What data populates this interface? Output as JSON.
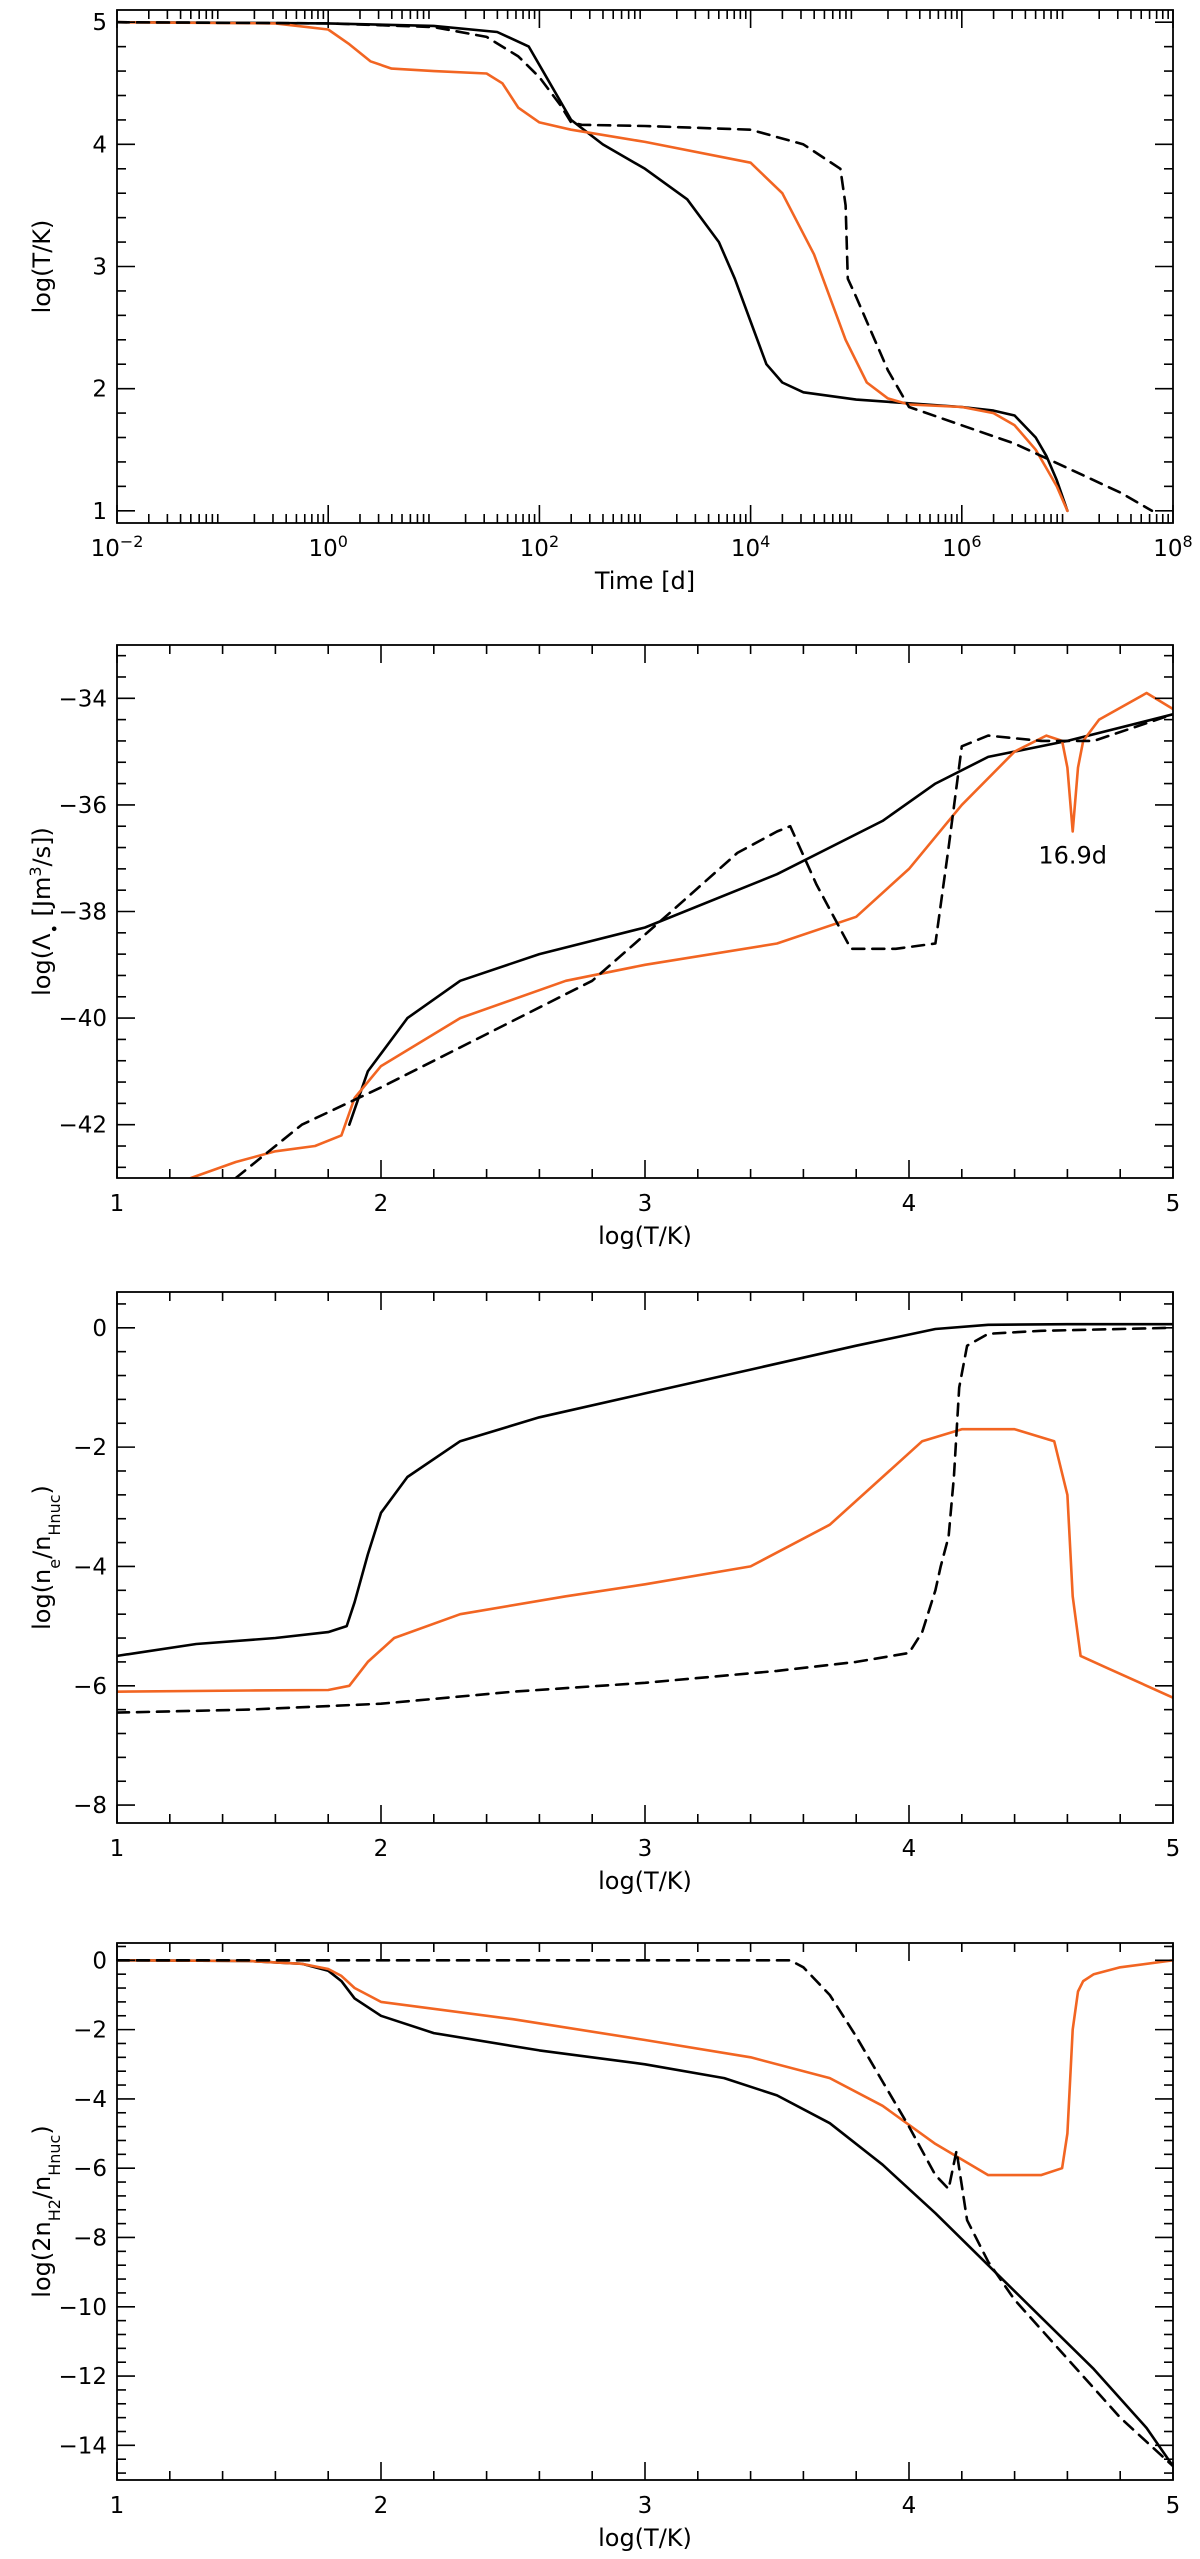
{
  "colors": {
    "black": "#000000",
    "orange": "#f26522"
  },
  "chart_data": [
    {
      "type": "line",
      "xscale": "log",
      "xlabel": "Time [d]",
      "ylabel": "log(T/K)",
      "xlim": [
        -2,
        8
      ],
      "ylim": [
        0.9,
        5.1
      ],
      "xticks": [
        {
          "v": -2,
          "base": "10",
          "exp": "−2"
        },
        {
          "v": 0,
          "base": "10",
          "exp": "0"
        },
        {
          "v": 2,
          "base": "10",
          "exp": "2"
        },
        {
          "v": 4,
          "base": "10",
          "exp": "4"
        },
        {
          "v": 6,
          "base": "10",
          "exp": "6"
        },
        {
          "v": 8,
          "base": "10",
          "exp": "8"
        }
      ],
      "yticks": [
        {
          "v": 1,
          "label": "1"
        },
        {
          "v": 2,
          "label": "2"
        },
        {
          "v": 3,
          "label": "3"
        },
        {
          "v": 4,
          "label": "4"
        },
        {
          "v": 5,
          "label": "5"
        }
      ],
      "series": [
        {
          "name": "solid-black",
          "color": "#000000",
          "dash": "",
          "x": [
            -2,
            0,
            1,
            1.6,
            1.9,
            2.1,
            2.3,
            2.6,
            3.0,
            3.4,
            3.7,
            3.85,
            4.0,
            4.15,
            4.3,
            4.5,
            5.0,
            5.5,
            6.0,
            6.3,
            6.5,
            6.7,
            6.8,
            6.9,
            7.0
          ],
          "y": [
            5.0,
            4.99,
            4.97,
            4.92,
            4.8,
            4.5,
            4.2,
            4.0,
            3.8,
            3.55,
            3.2,
            2.9,
            2.55,
            2.2,
            2.05,
            1.97,
            1.91,
            1.88,
            1.85,
            1.82,
            1.78,
            1.6,
            1.45,
            1.25,
            1.0
          ]
        },
        {
          "name": "orange",
          "color": "#f26522",
          "dash": "",
          "x": [
            -2,
            -0.5,
            0,
            0.2,
            0.4,
            0.6,
            1.0,
            1.5,
            1.65,
            1.8,
            2.0,
            2.3,
            3.0,
            4.0,
            4.3,
            4.6,
            4.9,
            5.1,
            5.3,
            5.5,
            6.0,
            6.3,
            6.5,
            6.7,
            6.8,
            6.9,
            7.0
          ],
          "y": [
            5.0,
            4.99,
            4.94,
            4.82,
            4.68,
            4.62,
            4.6,
            4.58,
            4.5,
            4.3,
            4.18,
            4.12,
            4.02,
            3.85,
            3.6,
            3.1,
            2.4,
            2.05,
            1.92,
            1.87,
            1.85,
            1.8,
            1.7,
            1.5,
            1.35,
            1.2,
            1.0
          ]
        },
        {
          "name": "dashed-black",
          "color": "#000000",
          "dash": "12,8",
          "x": [
            -2,
            0,
            1,
            1.5,
            1.8,
            2.0,
            2.2,
            2.3,
            2.4,
            3.0,
            4.0,
            4.5,
            4.85,
            4.9,
            4.92,
            5.0,
            5.3,
            5.5,
            6.0,
            6.5,
            7.0,
            7.5,
            7.8
          ],
          "y": [
            5.0,
            4.99,
            4.96,
            4.88,
            4.72,
            4.55,
            4.32,
            4.18,
            4.16,
            4.15,
            4.12,
            4.0,
            3.8,
            3.5,
            2.9,
            2.75,
            2.15,
            1.85,
            1.7,
            1.55,
            1.35,
            1.15,
            1.0
          ]
        }
      ]
    },
    {
      "type": "line",
      "xlabel": "log(T/K)",
      "ylabel": "log(Λ• [Jm³/s])",
      "xlim": [
        1,
        5
      ],
      "ylim": [
        -43,
        -33
      ],
      "xticks": [
        {
          "v": 1,
          "label": "1"
        },
        {
          "v": 2,
          "label": "2"
        },
        {
          "v": 3,
          "label": "3"
        },
        {
          "v": 4,
          "label": "4"
        },
        {
          "v": 5,
          "label": "5"
        }
      ],
      "yticks": [
        {
          "v": -42,
          "label": "−42"
        },
        {
          "v": -40,
          "label": "−40"
        },
        {
          "v": -38,
          "label": "−38"
        },
        {
          "v": -36,
          "label": "−36"
        },
        {
          "v": -34,
          "label": "−34"
        }
      ],
      "annotation": {
        "text": "16.9d",
        "x": 4.62,
        "y": -37.1
      },
      "series": [
        {
          "name": "solid-black",
          "color": "#000000",
          "dash": "",
          "x": [
            1.88,
            1.95,
            2.1,
            2.3,
            2.6,
            3.0,
            3.5,
            3.9,
            4.1,
            4.3,
            4.6,
            5.0
          ],
          "y": [
            -42.0,
            -41.0,
            -40.0,
            -39.3,
            -38.8,
            -38.3,
            -37.3,
            -36.3,
            -35.6,
            -35.1,
            -34.8,
            -34.3
          ]
        },
        {
          "name": "orange",
          "color": "#f26522",
          "dash": "",
          "x": [
            1.28,
            1.45,
            1.6,
            1.75,
            1.85,
            1.9,
            2.0,
            2.3,
            2.7,
            3.0,
            3.5,
            3.8,
            4.0,
            4.2,
            4.4,
            4.52,
            4.58,
            4.6,
            4.62,
            4.64,
            4.66,
            4.72,
            4.9,
            5.0
          ],
          "y": [
            -43.0,
            -42.7,
            -42.5,
            -42.4,
            -42.2,
            -41.5,
            -40.9,
            -40.0,
            -39.3,
            -39.0,
            -38.6,
            -38.1,
            -37.2,
            -36.0,
            -35.0,
            -34.7,
            -34.8,
            -35.3,
            -36.5,
            -35.3,
            -34.8,
            -34.4,
            -33.9,
            -34.2
          ]
        },
        {
          "name": "dashed-black",
          "color": "#000000",
          "dash": "12,8",
          "x": [
            1.45,
            1.7,
            2.0,
            2.4,
            2.8,
            3.1,
            3.35,
            3.5,
            3.55,
            3.65,
            3.78,
            3.95,
            4.1,
            4.15,
            4.2,
            4.3,
            4.5,
            4.7,
            5.0
          ],
          "y": [
            -43.0,
            -42.0,
            -41.3,
            -40.3,
            -39.3,
            -38.0,
            -36.9,
            -36.5,
            -36.4,
            -37.5,
            -38.7,
            -38.7,
            -38.6,
            -36.8,
            -34.9,
            -34.7,
            -34.8,
            -34.8,
            -34.3
          ]
        }
      ]
    },
    {
      "type": "line",
      "xlabel": "log(T/K)",
      "ylabel": "log(nₑ/n_Hnuc)",
      "xlim": [
        1,
        5
      ],
      "ylim": [
        -8.3,
        0.6
      ],
      "xticks": [
        {
          "v": 1,
          "label": "1"
        },
        {
          "v": 2,
          "label": "2"
        },
        {
          "v": 3,
          "label": "3"
        },
        {
          "v": 4,
          "label": "4"
        },
        {
          "v": 5,
          "label": "5"
        }
      ],
      "yticks": [
        {
          "v": -8,
          "label": "−8"
        },
        {
          "v": -6,
          "label": "−6"
        },
        {
          "v": -4,
          "label": "−4"
        },
        {
          "v": -2,
          "label": "−2"
        },
        {
          "v": 0,
          "label": "0"
        }
      ],
      "series": [
        {
          "name": "solid-black",
          "color": "#000000",
          "dash": "",
          "x": [
            1.0,
            1.3,
            1.6,
            1.8,
            1.87,
            1.9,
            1.95,
            2.0,
            2.1,
            2.3,
            2.6,
            3.0,
            3.4,
            3.8,
            4.1,
            4.3,
            4.6,
            5.0
          ],
          "y": [
            -5.5,
            -5.3,
            -5.2,
            -5.1,
            -5.0,
            -4.6,
            -3.8,
            -3.1,
            -2.5,
            -1.9,
            -1.5,
            -1.1,
            -0.7,
            -0.3,
            -0.02,
            0.05,
            0.06,
            0.06
          ]
        },
        {
          "name": "orange",
          "color": "#f26522",
          "dash": "",
          "x": [
            1.0,
            1.5,
            1.8,
            1.88,
            1.95,
            2.05,
            2.3,
            2.7,
            3.0,
            3.4,
            3.7,
            3.9,
            4.05,
            4.2,
            4.4,
            4.55,
            4.6,
            4.62,
            4.65,
            4.75,
            5.0
          ],
          "y": [
            -6.1,
            -6.08,
            -6.07,
            -6.0,
            -5.6,
            -5.2,
            -4.8,
            -4.5,
            -4.3,
            -4.0,
            -3.3,
            -2.5,
            -1.9,
            -1.7,
            -1.7,
            -1.9,
            -2.8,
            -4.5,
            -5.5,
            -5.7,
            -6.2
          ]
        },
        {
          "name": "dashed-black",
          "color": "#000000",
          "dash": "12,8",
          "x": [
            1.0,
            1.5,
            2.0,
            2.5,
            3.0,
            3.5,
            3.8,
            4.0,
            4.05,
            4.1,
            4.12,
            4.15,
            4.17,
            4.19,
            4.22,
            4.3,
            4.5,
            5.0
          ],
          "y": [
            -6.45,
            -6.4,
            -6.3,
            -6.1,
            -5.95,
            -5.75,
            -5.6,
            -5.45,
            -5.1,
            -4.4,
            -4.0,
            -3.5,
            -2.5,
            -1.0,
            -0.3,
            -0.1,
            -0.05,
            0.0
          ]
        }
      ]
    },
    {
      "type": "line",
      "xlabel": "log(T/K)",
      "ylabel": "log(2n_H2/n_Hnuc)",
      "xlim": [
        1,
        5
      ],
      "ylim": [
        -15,
        0.5
      ],
      "xticks": [
        {
          "v": 1,
          "label": "1"
        },
        {
          "v": 2,
          "label": "2"
        },
        {
          "v": 3,
          "label": "3"
        },
        {
          "v": 4,
          "label": "4"
        },
        {
          "v": 5,
          "label": "5"
        }
      ],
      "yticks": [
        {
          "v": -14,
          "label": "−14"
        },
        {
          "v": -12,
          "label": "−12"
        },
        {
          "v": -10,
          "label": "−10"
        },
        {
          "v": -8,
          "label": "−8"
        },
        {
          "v": -6,
          "label": "−6"
        },
        {
          "v": -4,
          "label": "−4"
        },
        {
          "v": -2,
          "label": "−2"
        },
        {
          "v": 0,
          "label": "0"
        }
      ],
      "series": [
        {
          "name": "solid-black",
          "color": "#000000",
          "dash": "",
          "x": [
            1.0,
            1.5,
            1.7,
            1.8,
            1.85,
            1.9,
            2.0,
            2.2,
            2.6,
            3.0,
            3.3,
            3.5,
            3.7,
            3.9,
            4.1,
            4.3,
            4.5,
            4.7,
            4.9,
            5.0
          ],
          "y": [
            0.0,
            -0.02,
            -0.1,
            -0.3,
            -0.6,
            -1.1,
            -1.6,
            -2.1,
            -2.6,
            -3.0,
            -3.4,
            -3.9,
            -4.7,
            -5.9,
            -7.3,
            -8.8,
            -10.3,
            -11.8,
            -13.5,
            -14.6
          ]
        },
        {
          "name": "orange",
          "color": "#f26522",
          "dash": "",
          "x": [
            1.0,
            1.5,
            1.7,
            1.8,
            1.85,
            1.9,
            2.0,
            2.5,
            3.0,
            3.4,
            3.7,
            3.9,
            4.1,
            4.3,
            4.5,
            4.58,
            4.6,
            4.62,
            4.64,
            4.66,
            4.7,
            4.8,
            5.0
          ],
          "y": [
            0.0,
            -0.02,
            -0.1,
            -0.25,
            -0.45,
            -0.8,
            -1.2,
            -1.7,
            -2.3,
            -2.8,
            -3.4,
            -4.2,
            -5.3,
            -6.2,
            -6.2,
            -6.0,
            -5.0,
            -2.0,
            -0.9,
            -0.6,
            -0.4,
            -0.2,
            0.0
          ]
        },
        {
          "name": "dashed-black",
          "color": "#000000",
          "dash": "12,8",
          "x": [
            1.0,
            2.0,
            3.0,
            3.55,
            3.6,
            3.7,
            3.8,
            3.9,
            4.0,
            4.1,
            4.15,
            4.18,
            4.2,
            4.22,
            4.3,
            4.4,
            4.6,
            4.8,
            5.0
          ],
          "y": [
            0.0,
            0.0,
            0.0,
            0.0,
            -0.2,
            -1.0,
            -2.2,
            -3.5,
            -4.8,
            -6.2,
            -6.6,
            -5.5,
            -6.5,
            -7.5,
            -8.7,
            -9.8,
            -11.5,
            -13.2,
            -14.6
          ]
        }
      ]
    }
  ]
}
